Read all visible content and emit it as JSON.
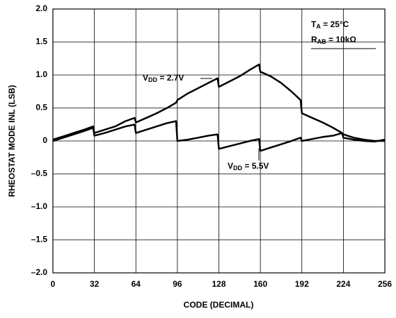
{
  "chart_data": {
    "type": "line",
    "x_label": "CODE (DECIMAL)",
    "y_label": "RHEOSTAT MODE INL (LSB)",
    "xlim": [
      0,
      256
    ],
    "xticks": [
      0,
      32,
      64,
      96,
      128,
      160,
      192,
      224,
      256
    ],
    "ylim": [
      -2,
      2
    ],
    "yticks": [
      {
        "value": -2,
        "label": "–2.0"
      },
      {
        "value": -1.5,
        "label": "–1.5"
      },
      {
        "value": -1,
        "label": "–1.0"
      },
      {
        "value": -0.5,
        "label": "–0.5"
      },
      0,
      {
        "value": 0.5,
        "label": "0.5"
      },
      {
        "value": 1,
        "label": "1.0"
      },
      {
        "value": 1.5,
        "label": "1.5"
      },
      {
        "value": 2,
        "label": "2.0"
      }
    ],
    "grid": true,
    "series": [
      {
        "color": "#000000",
        "label": [
          "V",
          "DD",
          " = 2.7V"
        ],
        "x": [
          0,
          8,
          16,
          24,
          31,
          32,
          40,
          48,
          56,
          63,
          64,
          72,
          80,
          88,
          95,
          96,
          104,
          112,
          120,
          127,
          128,
          136,
          144,
          152,
          159,
          160,
          168,
          176,
          184,
          191,
          192,
          200,
          208,
          216,
          223,
          224,
          232,
          240,
          248,
          256
        ],
        "values": [
          0.02,
          0.07,
          0.12,
          0.17,
          0.22,
          0.12,
          0.17,
          0.22,
          0.3,
          0.35,
          0.28,
          0.35,
          0.42,
          0.5,
          0.58,
          0.62,
          0.72,
          0.8,
          0.88,
          0.95,
          0.82,
          0.9,
          0.98,
          1.08,
          1.16,
          1.05,
          0.98,
          0.88,
          0.75,
          0.62,
          0.42,
          0.35,
          0.28,
          0.2,
          0.12,
          0.1,
          0.05,
          0.02,
          0,
          0
        ]
      },
      {
        "color": "#000000",
        "label": [
          "V",
          "DD",
          " = 5.5V"
        ],
        "x": [
          0,
          8,
          16,
          24,
          31,
          32,
          40,
          48,
          56,
          63,
          64,
          72,
          80,
          88,
          95,
          96,
          104,
          112,
          120,
          127,
          128,
          136,
          144,
          152,
          159,
          160,
          168,
          176,
          184,
          191,
          192,
          200,
          208,
          216,
          223,
          224,
          232,
          240,
          248,
          256
        ],
        "values": [
          0,
          0.05,
          0.1,
          0.15,
          0.2,
          0.08,
          0.12,
          0.17,
          0.22,
          0.25,
          0.12,
          0.17,
          0.22,
          0.27,
          0.3,
          0,
          0.02,
          0.05,
          0.08,
          0.1,
          -0.12,
          -0.08,
          -0.04,
          0,
          0.03,
          -0.15,
          -0.1,
          -0.05,
          0,
          0.05,
          0,
          0.03,
          0.06,
          0.08,
          0.12,
          0.05,
          0.02,
          0,
          -0.01,
          0.02
        ]
      }
    ],
    "conditions": [
      [
        "T",
        "A",
        " = 25°C"
      ],
      [
        "R",
        "AB",
        " = 10kΩ"
      ]
    ]
  }
}
